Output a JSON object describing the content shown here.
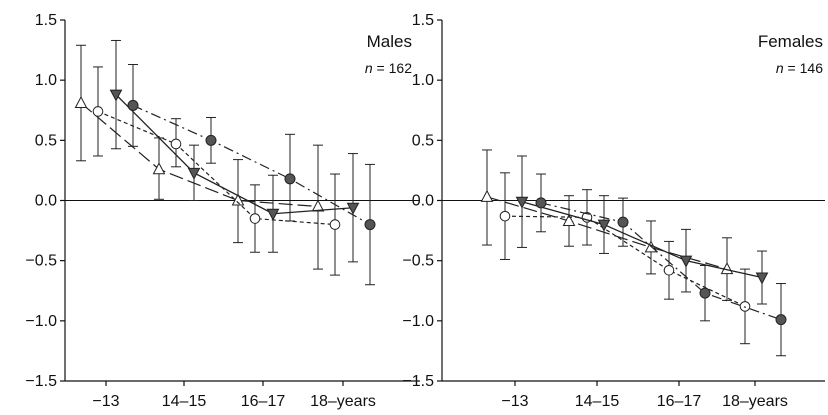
{
  "chart_data": [
    {
      "type": "line",
      "title": "Males",
      "subtitle": "n = 162",
      "categories": [
        "−13",
        "14–15",
        "16–17",
        "18–years"
      ],
      "ylim": [
        -1.5,
        1.5
      ],
      "yticks": [
        "1.5",
        "1.0",
        "0.5",
        "0.0",
        "−0.5",
        "−1.0",
        "−1.5"
      ],
      "series": [
        {
          "marker": "triangle-open",
          "line": "long-dash",
          "values": [
            0.81,
            0.26,
            0.0,
            -0.05
          ],
          "error_low": [
            0.33,
            0.01,
            -0.35,
            -0.57
          ],
          "error_high": [
            1.29,
            0.52,
            0.34,
            0.46
          ]
        },
        {
          "marker": "circle-open",
          "line": "short-dash",
          "values": [
            0.74,
            0.47,
            -0.15,
            -0.2
          ],
          "error_low": [
            0.37,
            0.28,
            -0.43,
            -0.62
          ],
          "error_high": [
            1.11,
            0.68,
            0.13,
            0.22
          ]
        },
        {
          "marker": "triangle-down-filled",
          "line": "solid",
          "values": [
            0.88,
            0.23,
            -0.11,
            -0.06
          ],
          "error_low": [
            0.43,
            0.0,
            -0.43,
            -0.51
          ],
          "error_high": [
            1.33,
            0.46,
            0.21,
            0.39
          ]
        },
        {
          "marker": "circle-filled",
          "line": "dash-dot",
          "values": [
            0.79,
            0.5,
            0.18,
            -0.2
          ],
          "error_low": [
            0.45,
            0.31,
            -0.17,
            -0.7
          ],
          "error_high": [
            1.13,
            0.69,
            0.55,
            0.3
          ]
        }
      ]
    },
    {
      "type": "line",
      "title": "Females",
      "subtitle": "n = 146",
      "categories": [
        "−13",
        "14–15",
        "16–17",
        "18–years"
      ],
      "ylim": [
        -1.5,
        1.5
      ],
      "yticks": [
        "1.5",
        "1.0",
        "0.5",
        "0.0",
        "−0.5",
        "−1.0",
        "−1.5"
      ],
      "series": [
        {
          "marker": "triangle-open",
          "line": "long-dash",
          "values": [
            0.03,
            -0.17,
            -0.39,
            -0.57
          ],
          "error_low": [
            -0.37,
            -0.38,
            -0.61,
            -0.83
          ],
          "error_high": [
            0.42,
            0.04,
            -0.17,
            -0.31
          ]
        },
        {
          "marker": "circle-open",
          "line": "short-dash",
          "values": [
            -0.13,
            -0.14,
            -0.58,
            -0.88
          ],
          "error_low": [
            -0.49,
            -0.37,
            -0.82,
            -1.19
          ],
          "error_high": [
            0.23,
            0.09,
            -0.34,
            -0.57
          ]
        },
        {
          "marker": "triangle-down-filled",
          "line": "solid",
          "values": [
            -0.01,
            -0.2,
            -0.5,
            -0.64
          ],
          "error_low": [
            -0.39,
            -0.44,
            -0.76,
            -0.86
          ],
          "error_high": [
            0.37,
            0.04,
            -0.24,
            -0.42
          ]
        },
        {
          "marker": "circle-filled",
          "line": "dash-dot",
          "values": [
            -0.02,
            -0.18,
            -0.77,
            -0.99
          ],
          "error_low": [
            -0.26,
            -0.38,
            -1.0,
            -1.29
          ],
          "error_high": [
            0.22,
            0.02,
            -0.54,
            -0.69
          ]
        }
      ]
    }
  ]
}
